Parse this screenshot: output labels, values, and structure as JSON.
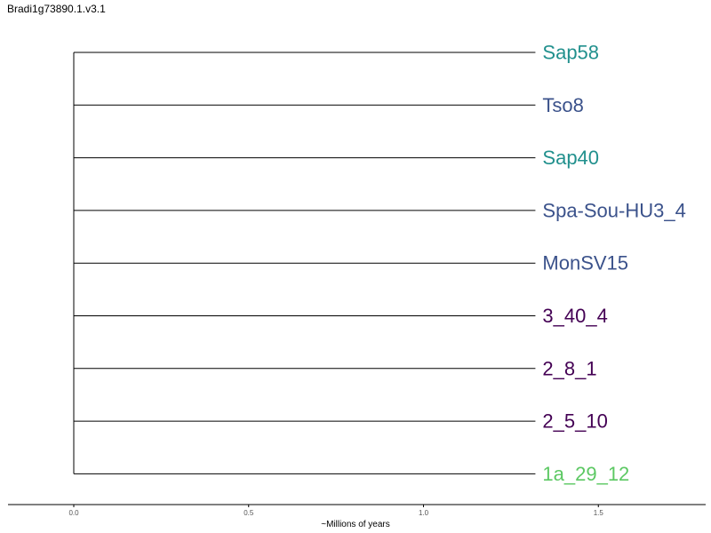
{
  "chart_data": {
    "type": "dendrogram",
    "title": "Bradi1g73890.1.v3.1",
    "xlabel": "~Millions of years",
    "xlim": [
      0.0,
      1.8
    ],
    "xticks": [
      "0.0",
      "0.5",
      "1.0",
      "1.5"
    ],
    "xtick_values": [
      0.0,
      0.5,
      1.0,
      1.5
    ],
    "grid": false,
    "branch_color": "#000000",
    "root_x": 0.0,
    "leaf_x": 1.32,
    "leaves": [
      {
        "label": "Sap58",
        "color": "#21908d"
      },
      {
        "label": "Tso8",
        "color": "#3b528b"
      },
      {
        "label": "Sap40",
        "color": "#21908d"
      },
      {
        "label": "Spa-Sou-HU3_4",
        "color": "#3b528b"
      },
      {
        "label": "MonSV15",
        "color": "#3b528b"
      },
      {
        "label": "3_40_4",
        "color": "#440154"
      },
      {
        "label": "2_8_1",
        "color": "#440154"
      },
      {
        "label": "2_5_10",
        "color": "#440154"
      },
      {
        "label": "1a_29_12",
        "color": "#5cc863"
      }
    ]
  }
}
